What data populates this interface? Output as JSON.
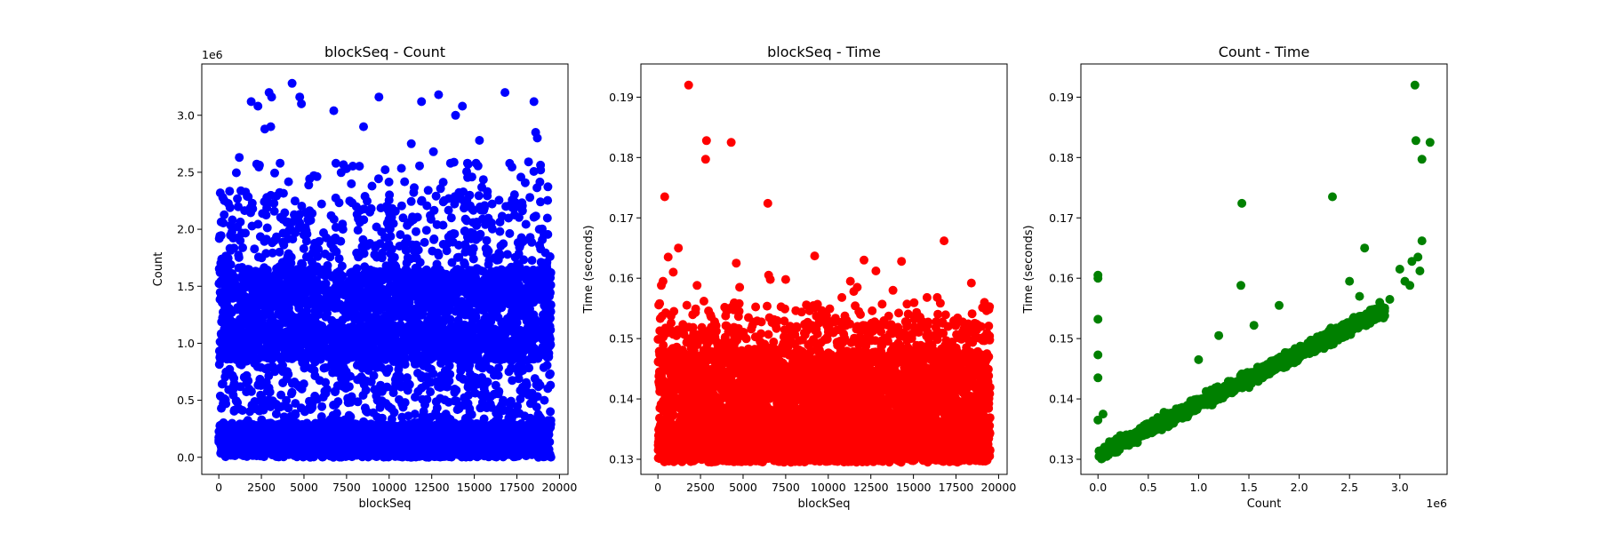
{
  "chart_data": [
    {
      "type": "scatter",
      "title": "blockSeq - Count",
      "xlabel": "blockSeq",
      "ylabel": "Count",
      "y_offset_label": "1e6",
      "color": "#0000ff",
      "xlim": [
        -1000,
        20500
      ],
      "ylim": [
        -0.15,
        3.45
      ],
      "xticks": [
        0,
        2500,
        5000,
        7500,
        10000,
        12500,
        15000,
        17500,
        20000
      ],
      "yticks": [
        0.0,
        0.5,
        1.0,
        1.5,
        2.0,
        2.5,
        3.0
      ],
      "series": [
        {
          "bands": [
            {
              "y": [
                0.0,
                0.3
              ],
              "n": 1400
            },
            {
              "y": [
                0.0,
                0.85
              ],
              "n": 700
            },
            {
              "y": [
                0.85,
                1.15
              ],
              "n": 1100
            },
            {
              "y": [
                1.15,
                1.3
              ],
              "n": 250
            },
            {
              "y": [
                1.3,
                1.65
              ],
              "n": 1100
            },
            {
              "y": [
                1.65,
                2.3
              ],
              "n": 400
            },
            {
              "y": [
                2.3,
                2.6
              ],
              "n": 60
            }
          ],
          "x_range": [
            0,
            19500
          ],
          "outliers": [
            [
              1900,
              3.12
            ],
            [
              2300,
              3.08
            ],
            [
              2700,
              2.88
            ],
            [
              2950,
              3.2
            ],
            [
              3100,
              3.16
            ],
            [
              3050,
              2.9
            ],
            [
              4300,
              3.28
            ],
            [
              4750,
              3.16
            ],
            [
              4850,
              3.1
            ],
            [
              6750,
              3.04
            ],
            [
              8500,
              2.9
            ],
            [
              9400,
              3.16
            ],
            [
              11900,
              3.12
            ],
            [
              12900,
              3.18
            ],
            [
              13900,
              3.0
            ],
            [
              14300,
              3.08
            ],
            [
              15300,
              2.78
            ],
            [
              16800,
              3.2
            ],
            [
              18500,
              3.12
            ],
            [
              18600,
              2.85
            ],
            [
              18700,
              2.8
            ],
            [
              3600,
              2.58
            ],
            [
              1200,
              2.63
            ],
            [
              11300,
              2.75
            ],
            [
              12600,
              2.68
            ],
            [
              13600,
              2.58
            ],
            [
              14600,
              2.58
            ]
          ]
        }
      ]
    },
    {
      "type": "scatter",
      "title": "blockSeq - Time",
      "xlabel": "blockSeq",
      "ylabel": "Time (seconds)",
      "color": "#ff0000",
      "xlim": [
        -1000,
        20500
      ],
      "ylim": [
        0.1275,
        0.1955
      ],
      "xticks": [
        0,
        2500,
        5000,
        7500,
        10000,
        12500,
        15000,
        17500,
        20000
      ],
      "yticks": [
        0.13,
        0.14,
        0.15,
        0.16,
        0.17,
        0.18,
        0.19
      ],
      "series": [
        {
          "bands": [
            {
              "y": [
                0.1295,
                0.136
              ],
              "n": 2400
            },
            {
              "y": [
                0.136,
                0.148
              ],
              "n": 2400
            },
            {
              "y": [
                0.148,
                0.153
              ],
              "n": 320
            },
            {
              "y": [
                0.153,
                0.156
              ],
              "n": 70
            }
          ],
          "x_range": [
            0,
            19500
          ],
          "outliers": [
            [
              1800,
              0.192
            ],
            [
              2850,
              0.1828
            ],
            [
              2800,
              0.1797
            ],
            [
              4300,
              0.1825
            ],
            [
              400,
              0.1735
            ],
            [
              6450,
              0.1724
            ],
            [
              16800,
              0.1662
            ],
            [
              1200,
              0.165
            ],
            [
              600,
              0.1635
            ],
            [
              900,
              0.161
            ],
            [
              200,
              0.1588
            ],
            [
              300,
              0.1595
            ],
            [
              100,
              0.1558
            ],
            [
              2300,
              0.1588
            ],
            [
              4600,
              0.1625
            ],
            [
              6500,
              0.1605
            ],
            [
              6600,
              0.1598
            ],
            [
              7500,
              0.1598
            ],
            [
              9200,
              0.1637
            ],
            [
              11300,
              0.1595
            ],
            [
              11700,
              0.1585
            ],
            [
              12100,
              0.163
            ],
            [
              12800,
              0.1612
            ],
            [
              13800,
              0.158
            ],
            [
              14300,
              0.1628
            ],
            [
              15800,
              0.1568
            ],
            [
              16400,
              0.1568
            ],
            [
              18400,
              0.1592
            ],
            [
              2700,
              0.1562
            ],
            [
              4800,
              0.1585
            ],
            [
              11500,
              0.1578
            ],
            [
              10800,
              0.1568
            ]
          ]
        }
      ]
    },
    {
      "type": "scatter",
      "title": "Count - Time",
      "xlabel": "Count",
      "ylabel": "Time (seconds)",
      "x_offset_label": "1e6",
      "color": "#008000",
      "xlim": [
        -0.17,
        3.47
      ],
      "ylim": [
        0.1275,
        0.1955
      ],
      "xticks": [
        0.0,
        0.5,
        1.0,
        1.5,
        2.0,
        2.5,
        3.0
      ],
      "yticks": [
        0.13,
        0.14,
        0.15,
        0.16,
        0.17,
        0.18,
        0.19
      ],
      "series": [
        {
          "trend": {
            "intercept": 0.1308,
            "slope": 0.0084,
            "spread": 0.0016,
            "n": 1600
          },
          "outliers": [
            [
              0.0,
              0.1605
            ],
            [
              0.0,
              0.16
            ],
            [
              0.0,
              0.1532
            ],
            [
              0.0,
              0.1473
            ],
            [
              0.0,
              0.1435
            ],
            [
              0.05,
              0.1375
            ],
            [
              0.0,
              0.1365
            ],
            [
              1.43,
              0.1724
            ],
            [
              1.42,
              0.1588
            ],
            [
              2.33,
              0.1735
            ],
            [
              2.65,
              0.165
            ],
            [
              2.5,
              0.1595
            ],
            [
              3.15,
              0.192
            ],
            [
              3.16,
              0.1828
            ],
            [
              3.22,
              0.1797
            ],
            [
              3.3,
              0.1825
            ],
            [
              3.22,
              0.1662
            ],
            [
              3.18,
              0.1635
            ],
            [
              3.12,
              0.1628
            ],
            [
              3.2,
              0.1612
            ],
            [
              1.2,
              0.1505
            ],
            [
              1.0,
              0.1465
            ],
            [
              2.6,
              0.157
            ],
            [
              2.8,
              0.156
            ],
            [
              2.9,
              0.1565
            ],
            [
              3.05,
              0.1595
            ],
            [
              3.1,
              0.1588
            ],
            [
              3.0,
              0.1615
            ],
            [
              1.55,
              0.1522
            ],
            [
              1.8,
              0.1555
            ]
          ]
        }
      ]
    }
  ]
}
